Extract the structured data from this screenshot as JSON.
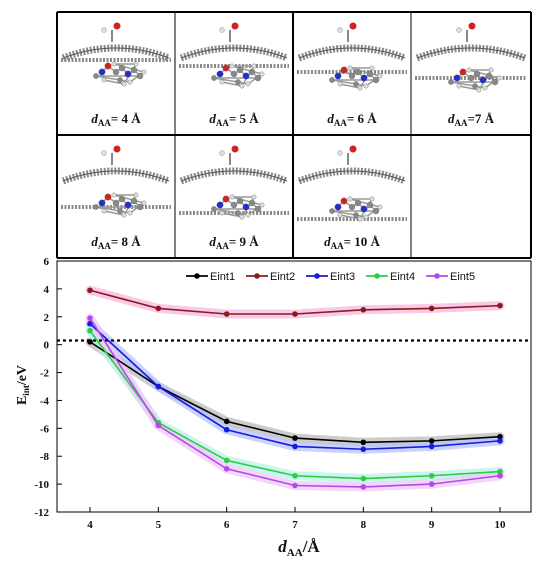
{
  "panels": [
    {
      "label_main": "d",
      "label_sub": "AA",
      "label_value": "= 4 Å"
    },
    {
      "label_main": "d",
      "label_sub": "AA",
      "label_value": "= 5 Å"
    },
    {
      "label_main": "d",
      "label_sub": "AA",
      "label_value": "= 6 Å"
    },
    {
      "label_main": "d",
      "label_sub": "AA",
      "label_value": "=7 Å"
    },
    {
      "label_main": "d",
      "label_sub": "AA",
      "label_value": "= 8 Å"
    },
    {
      "label_main": "d",
      "label_sub": "AA",
      "label_value": "= 9 Å"
    },
    {
      "label_main": "d",
      "label_sub": "AA",
      "label_value": "= 10 Å"
    }
  ],
  "chart_data": {
    "type": "line",
    "title": "",
    "xlabel_main": "d",
    "xlabel_sub": "AA",
    "xlabel_unit": "/Å",
    "ylabel_main": "E",
    "ylabel_sub": "int",
    "ylabel_unit": "/eV",
    "x": [
      4,
      5,
      6,
      7,
      8,
      9,
      10
    ],
    "xlim": [
      3.5,
      10.5
    ],
    "ylim": [
      -12,
      6
    ],
    "xticks": [
      4,
      5,
      6,
      7,
      8,
      9,
      10
    ],
    "yticks": [
      -12,
      -10,
      -8,
      -6,
      -4,
      -2,
      0,
      2,
      4,
      6
    ],
    "reference_line_y": 0.3,
    "legend_position": "top-right",
    "grid": false,
    "series": [
      {
        "name": "Eint1",
        "color": "#000000",
        "glow": "#bbbbbb",
        "values": [
          0.2,
          -3.0,
          -5.5,
          -6.7,
          -7.0,
          -6.9,
          -6.6
        ]
      },
      {
        "name": "Eint2",
        "color": "#8b1a1a",
        "glow": "#f5b8e0",
        "values": [
          3.9,
          2.6,
          2.2,
          2.2,
          2.5,
          2.6,
          2.8
        ]
      },
      {
        "name": "Eint3",
        "color": "#1a1adc",
        "glow": "#b8c4ff",
        "values": [
          1.5,
          -3.0,
          -6.1,
          -7.3,
          -7.5,
          -7.3,
          -6.9
        ]
      },
      {
        "name": "Eint4",
        "color": "#2ecc40",
        "glow": "#b8f0e8",
        "values": [
          1.0,
          -5.6,
          -8.3,
          -9.4,
          -9.6,
          -9.4,
          -9.1
        ]
      },
      {
        "name": "Eint5",
        "color": "#b04ae8",
        "glow": "#f0c8f8",
        "values": [
          1.9,
          -5.8,
          -8.9,
          -10.1,
          -10.2,
          -10.0,
          -9.4
        ]
      }
    ]
  }
}
